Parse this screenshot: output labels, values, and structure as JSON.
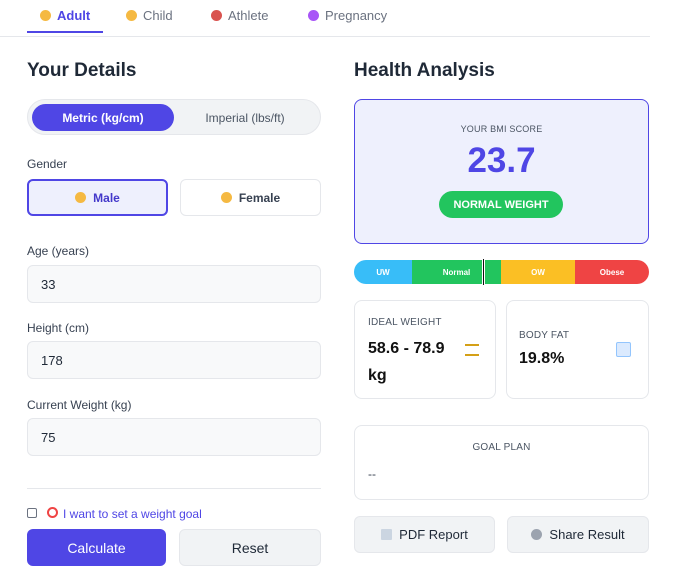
{
  "tabs": [
    "Adult",
    "Child",
    "Athlete",
    "Pregnancy"
  ],
  "details": {
    "title": "Your Details",
    "units": [
      "Metric (kg/cm)",
      "Imperial (lbs/ft)"
    ],
    "gender": {
      "label": "Gender",
      "options": [
        "Male",
        "Female"
      ]
    },
    "fields": [
      {
        "label": "Age (years)",
        "value": "33"
      },
      {
        "label": "Height (cm)",
        "value": "178"
      },
      {
        "label": "Current Weight (kg)",
        "value": "75"
      }
    ],
    "goal_checkbox": "I want to set a weight goal",
    "buttons": [
      "Calculate",
      "Reset"
    ]
  },
  "analysis": {
    "title": "Health Analysis",
    "bmi_label": "YOUR BMI SCORE",
    "bmi": "23.7",
    "status": "NORMAL WEIGHT",
    "scale": [
      "UW",
      "Normal",
      "OW",
      "Obese"
    ],
    "ideal_weight": {
      "label": "IDEAL WEIGHT",
      "value": "58.6 - 78.9 kg"
    },
    "body_fat": {
      "label": "BODY FAT",
      "value": "19.8%"
    },
    "goal_plan": {
      "label": "GOAL PLAN",
      "value": "--"
    },
    "buttons": [
      "PDF Report",
      "Share Result"
    ]
  }
}
